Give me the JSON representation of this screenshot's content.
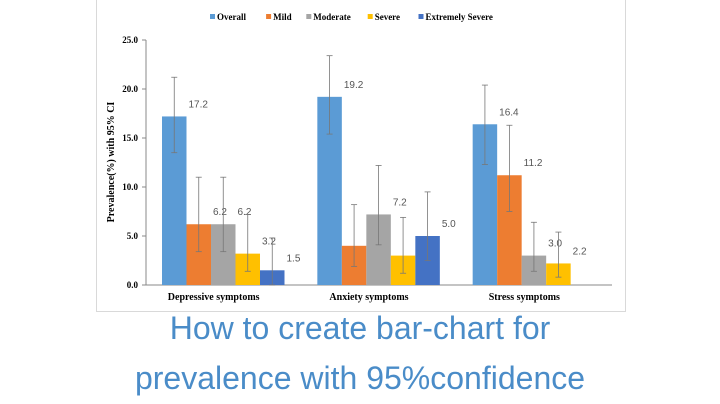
{
  "chart_data": {
    "type": "bar",
    "title": "",
    "xlabel": "",
    "ylabel": "Prevalence(%) with 95% CI",
    "ylim": [
      0,
      25
    ],
    "yticks": [
      "0.0",
      "5.0",
      "10.0",
      "15.0",
      "20.0",
      "25.0"
    ],
    "categories": [
      "Depressive symptoms",
      "Anxiety symptoms",
      "Stress symptoms"
    ],
    "legend_position": "top",
    "series": [
      {
        "name": "Overall",
        "color": "#5b9bd5",
        "values": [
          17.2,
          19.2,
          16.4
        ],
        "ci_low": [
          13.5,
          15.4,
          12.3
        ],
        "ci_high": [
          21.2,
          23.4,
          20.4
        ]
      },
      {
        "name": "Mild",
        "color": "#ed7d31",
        "values": [
          6.2,
          4.0,
          11.2
        ],
        "ci_low": [
          3.4,
          1.9,
          7.5
        ],
        "ci_high": [
          11.0,
          8.2,
          16.3
        ]
      },
      {
        "name": "Moderate",
        "color": "#a5a5a5",
        "values": [
          6.2,
          7.2,
          3.0
        ],
        "ci_low": [
          3.4,
          4.1,
          1.4
        ],
        "ci_high": [
          11.0,
          12.2,
          6.4
        ]
      },
      {
        "name": "Severe",
        "color": "#ffc000",
        "values": [
          3.2,
          3.0,
          2.2
        ],
        "ci_low": [
          1.4,
          1.2,
          0.8
        ],
        "ci_high": [
          7.2,
          6.9,
          5.4
        ]
      },
      {
        "name": "Extremely Severe",
        "color": "#4472c4",
        "values": [
          1.5,
          5.0,
          null
        ],
        "ci_low": [
          0.0,
          2.5,
          null
        ],
        "ci_high": [
          4.8,
          9.5,
          null
        ]
      }
    ]
  },
  "caption": {
    "line1": "How to create bar-chart for",
    "line2": "prevalence with 95%confidence"
  }
}
